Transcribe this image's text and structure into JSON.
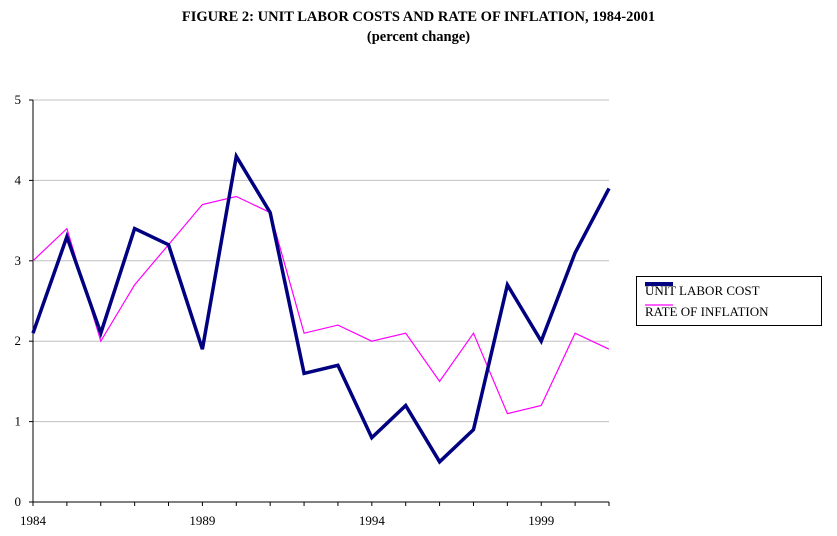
{
  "chart_data": {
    "type": "line",
    "title": "FIGURE 2: UNIT LABOR COSTS AND RATE OF INFLATION, 1984-2001",
    "subtitle": "(percent change)",
    "x": [
      1984,
      1985,
      1986,
      1987,
      1988,
      1989,
      1990,
      1991,
      1992,
      1993,
      1994,
      1995,
      1996,
      1997,
      1998,
      1999,
      2000,
      2001
    ],
    "x_tick_labels": [
      "1984",
      "1989",
      "1994",
      "1999"
    ],
    "x_ticks": [
      1984,
      1989,
      1994,
      1999
    ],
    "xlim": [
      1984,
      2001
    ],
    "ylim": [
      0,
      5
    ],
    "y_ticks": [
      0,
      1,
      2,
      3,
      4,
      5
    ],
    "y_tick_labels": [
      "0",
      "1",
      "2",
      "3",
      "4",
      "5"
    ],
    "grid": "horizontal",
    "legend_position": "right",
    "series": [
      {
        "name": "UNIT LABOR COST",
        "color": "#000080",
        "values": [
          2.1,
          3.3,
          2.1,
          3.4,
          3.2,
          1.9,
          4.3,
          3.6,
          1.6,
          1.7,
          0.8,
          1.2,
          0.5,
          0.9,
          2.7,
          2.0,
          3.1,
          3.9
        ]
      },
      {
        "name": "RATE OF INFLATION",
        "color": "#ff00ff",
        "values": [
          3.0,
          3.4,
          2.0,
          2.7,
          3.2,
          3.7,
          3.8,
          3.6,
          2.1,
          2.2,
          2.0,
          2.1,
          1.5,
          2.1,
          1.1,
          1.2,
          2.1,
          1.9
        ]
      }
    ]
  }
}
